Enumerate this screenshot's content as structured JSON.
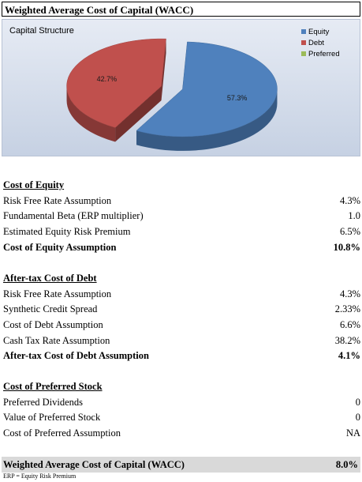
{
  "title": "Weighted Average Cost of Capital (WACC)",
  "chart_data": {
    "type": "pie",
    "title": "Capital Structure",
    "categories": [
      "Equity",
      "Debt",
      "Preferred"
    ],
    "values": [
      57.3,
      42.7,
      0
    ],
    "labels": [
      "57.3%",
      "42.7%",
      ""
    ],
    "colors": [
      "#4f81bd",
      "#c0504d",
      "#9bbb59"
    ],
    "legend_position": "top-right"
  },
  "cost_of_equity": {
    "header": "Cost of Equity",
    "rows": [
      {
        "label": "Risk Free Rate Assumption",
        "value": "4.3%"
      },
      {
        "label": "Fundamental Beta (ERP multiplier)",
        "value": "1.0"
      },
      {
        "label": "Estimated Equity Risk Premium",
        "value": "6.5%"
      },
      {
        "label": "Cost of Equity Assumption",
        "value": "10.8%"
      }
    ]
  },
  "cost_of_debt": {
    "header": "After-tax Cost of Debt",
    "rows": [
      {
        "label": "Risk Free Rate Assumption",
        "value": "4.3%"
      },
      {
        "label": "Synthetic Credit Spread",
        "value": "2.33%"
      },
      {
        "label": "Cost of Debt Assumption",
        "value": "6.6%"
      },
      {
        "label": "Cash Tax Rate Assumption",
        "value": "38.2%"
      },
      {
        "label": "After-tax Cost of Debt Assumption",
        "value": "4.1%"
      }
    ]
  },
  "cost_of_preferred": {
    "header": "Cost of Preferred Stock",
    "rows": [
      {
        "label": "Preferred Dividends",
        "value": "0"
      },
      {
        "label": "Value of Preferred Stock",
        "value": "0"
      },
      {
        "label": "Cost of Preferred Assumption",
        "value": "NA"
      }
    ]
  },
  "total": {
    "label": "Weighted Average Cost of Capital (WACC)",
    "value": "8.0%"
  },
  "footnote": "ERP = Equity Risk Premium"
}
